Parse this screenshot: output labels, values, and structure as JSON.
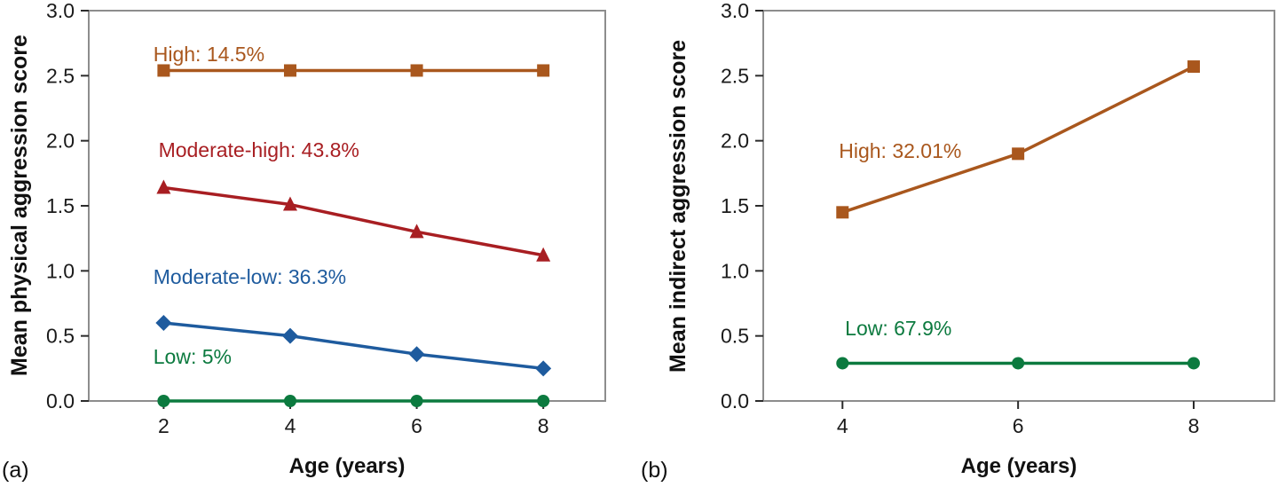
{
  "chart_data": [
    {
      "type": "line",
      "panel_label": "(a)",
      "xlabel": "Age (years)",
      "ylabel": "Mean physical aggression score",
      "x": [
        2,
        4,
        6,
        8
      ],
      "xlim": [
        2,
        8
      ],
      "ylim": [
        0,
        3
      ],
      "xticks": [
        "2",
        "4",
        "6",
        "8"
      ],
      "yticks": [
        "0.0",
        "0.5",
        "1.0",
        "1.5",
        "2.0",
        "2.5",
        "3.0"
      ],
      "grid": false,
      "legend_position": "inline-annotations",
      "series": [
        {
          "name": "High",
          "annotation": "High: 14.5%",
          "color": "#a9571d",
          "marker": "square",
          "values": [
            2.54,
            2.54,
            2.54,
            2.54
          ],
          "annotation_pos": {
            "fx": 0.125,
            "fy": 0.13
          }
        },
        {
          "name": "Moderate-high",
          "annotation": "Moderate-high: 43.8%",
          "color": "#a81e22",
          "marker": "triangle",
          "values": [
            1.64,
            1.51,
            1.3,
            1.12
          ],
          "annotation_pos": {
            "fx": 0.135,
            "fy": 0.375
          }
        },
        {
          "name": "Moderate-low",
          "annotation": "Moderate-low: 36.3%",
          "color": "#1e5b9e",
          "marker": "diamond",
          "values": [
            0.6,
            0.5,
            0.36,
            0.25
          ],
          "annotation_pos": {
            "fx": 0.125,
            "fy": 0.7
          }
        },
        {
          "name": "Low",
          "annotation": "Low: 5%",
          "color": "#0c7a3f",
          "marker": "circle",
          "values": [
            0.0,
            0.0,
            0.0,
            0.0
          ],
          "annotation_pos": {
            "fx": 0.125,
            "fy": 0.905
          }
        }
      ]
    },
    {
      "type": "line",
      "panel_label": "(b)",
      "xlabel": "Age (years)",
      "ylabel": "Mean indirect aggression score",
      "x": [
        4,
        6,
        8
      ],
      "xlim": [
        4,
        8
      ],
      "ylim": [
        0,
        3
      ],
      "xticks": [
        "4",
        "6",
        "8"
      ],
      "yticks": [
        "0.0",
        "0.5",
        "1.0",
        "1.5",
        "2.0",
        "2.5",
        "3.0"
      ],
      "grid": false,
      "legend_position": "inline-annotations",
      "series": [
        {
          "name": "High",
          "annotation": "High: 32.01%",
          "color": "#a9571d",
          "marker": "square",
          "values": [
            1.45,
            1.9,
            2.57
          ],
          "annotation_pos": {
            "fx": 0.148,
            "fy": 0.377
          }
        },
        {
          "name": "Low",
          "annotation": "Low: 67.9%",
          "color": "#0c7a3f",
          "marker": "circle",
          "values": [
            0.29,
            0.29,
            0.29
          ],
          "annotation_pos": {
            "fx": 0.16,
            "fy": 0.832
          }
        }
      ]
    }
  ],
  "style": {
    "frame_color": "#8d8d8d",
    "tick_color": "#2b2b2b",
    "tick_label_color": "#1a1a1a",
    "background": "#ffffff"
  }
}
